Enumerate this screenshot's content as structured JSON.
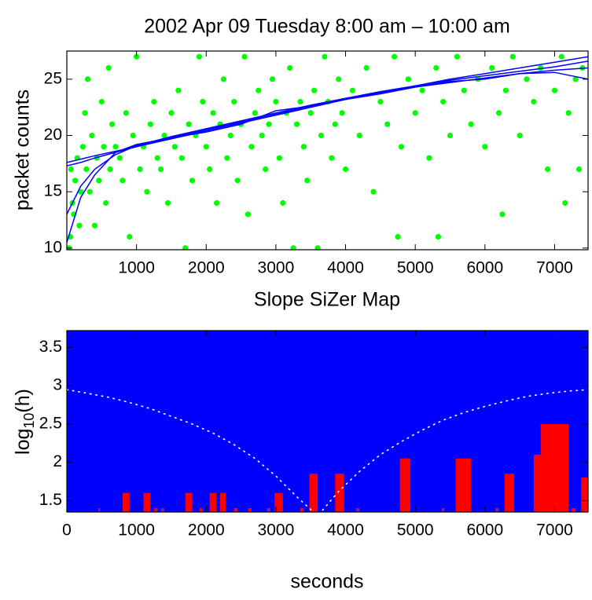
{
  "chart_data": [
    {
      "type": "scatter",
      "title": "2002 Apr 09 Tuesday 8:00 am – 10:00 am",
      "ylabel": "packet counts",
      "xlim": [
        0,
        7480
      ],
      "ylim": [
        9.85,
        27.5
      ],
      "xticks": [
        1000,
        2000,
        3000,
        4000,
        5000,
        6000,
        7000
      ],
      "yticks": [
        10,
        15,
        20,
        25
      ],
      "points": {
        "color": "#00ff00",
        "x": [
          30,
          50,
          60,
          80,
          100,
          120,
          150,
          180,
          200,
          230,
          260,
          280,
          300,
          330,
          360,
          400,
          430,
          460,
          500,
          530,
          560,
          600,
          620,
          650,
          700,
          760,
          800,
          850,
          900,
          950,
          1000,
          1050,
          1100,
          1150,
          1200,
          1250,
          1300,
          1350,
          1400,
          1450,
          1500,
          1550,
          1600,
          1650,
          1700,
          1750,
          1800,
          1850,
          1900,
          1950,
          2000,
          2050,
          2100,
          2150,
          2200,
          2250,
          2300,
          2350,
          2400,
          2450,
          2500,
          2550,
          2600,
          2650,
          2700,
          2750,
          2800,
          2850,
          2900,
          2950,
          3000,
          3050,
          3100,
          3150,
          3200,
          3250,
          3300,
          3350,
          3400,
          3450,
          3500,
          3550,
          3600,
          3650,
          3700,
          3750,
          3800,
          3850,
          3900,
          3950,
          4000,
          4100,
          4200,
          4300,
          4400,
          4500,
          4600,
          4700,
          4750,
          4800,
          4900,
          5000,
          5100,
          5200,
          5300,
          5330,
          5400,
          5500,
          5600,
          5700,
          5800,
          5900,
          6000,
          6100,
          6200,
          6250,
          6300,
          6400,
          6500,
          6600,
          6700,
          6800,
          6900,
          7000,
          7100,
          7150,
          7200,
          7300,
          7350,
          7400
        ],
        "y": [
          10,
          11,
          17,
          14,
          13,
          16,
          18,
          12,
          15,
          19,
          22,
          17,
          25,
          15,
          20,
          12,
          18,
          16,
          23,
          19,
          14,
          26,
          17,
          21,
          19,
          18,
          16,
          22,
          11,
          20,
          27,
          17,
          19,
          15,
          21,
          23,
          18,
          17,
          20,
          14,
          22,
          19,
          24,
          18,
          10,
          21,
          16,
          20,
          27,
          23,
          19,
          17,
          22,
          14,
          21,
          25,
          18,
          20,
          23,
          16,
          21,
          27,
          13,
          19,
          22,
          24,
          20,
          17,
          21,
          25,
          23,
          18,
          14,
          22,
          26,
          10,
          21,
          23,
          19,
          16,
          22,
          24,
          10,
          20,
          27,
          23,
          18,
          21,
          25,
          22,
          17,
          24,
          20,
          26,
          15,
          23,
          21,
          27,
          11,
          19,
          25,
          22,
          24,
          18,
          26,
          11,
          23,
          20,
          27,
          24,
          21,
          25,
          19,
          26,
          22,
          13,
          24,
          27,
          20,
          25,
          23,
          26,
          17,
          24,
          27,
          14,
          22,
          25,
          17,
          26
        ]
      },
      "smooth": {
        "color": "#0000ff",
        "x": [
          0,
          200,
          400,
          700,
          1000,
          1500,
          2000,
          2500,
          3000,
          3500,
          4000,
          4500,
          5000,
          5500,
          6000,
          6500,
          7000,
          7480
        ],
        "curves": [
          [
            10.5,
            14.5,
            16.5,
            18.5,
            19.2,
            19.8,
            20.3,
            21.0,
            22.2,
            22.6,
            23.2,
            23.7,
            24.3,
            24.8,
            25.0,
            25.5,
            25.6,
            25.0
          ],
          [
            13,
            15.5,
            17,
            18.3,
            19.1,
            19.9,
            20.6,
            21.3,
            22.0,
            22.7,
            23.3,
            23.8,
            24.3,
            24.7,
            25.1,
            25.5,
            25.8,
            26.0
          ],
          [
            17.3,
            17.6,
            18,
            18.5,
            19,
            19.8,
            20.5,
            21.2,
            21.9,
            22.6,
            23.3,
            23.9,
            24.4,
            24.9,
            25.3,
            25.7,
            26.1,
            26.6
          ],
          [
            17.6,
            17.9,
            18.2,
            18.6,
            19,
            19.7,
            20.4,
            21.1,
            21.8,
            22.5,
            23.2,
            23.8,
            24.4,
            25.0,
            25.5,
            26.0,
            26.5,
            27.0
          ]
        ]
      }
    },
    {
      "type": "heatmap",
      "title": "Slope SiZer Map",
      "xlabel": "seconds",
      "ylabel": [
        "log",
        "10",
        "(h)"
      ],
      "xlim": [
        0,
        7480
      ],
      "ylim": [
        1.35,
        3.72
      ],
      "xticks": [
        0,
        1000,
        2000,
        3000,
        4000,
        5000,
        6000,
        7000
      ],
      "yticks": [
        1.5,
        2,
        2.5,
        3,
        3.5
      ],
      "background": "#0000ff",
      "regions": [
        {
          "color": "#ff0000",
          "x0": [
            800,
            1100,
            1250,
            1700,
            1900,
            2050,
            2200,
            2400,
            2600,
            2980,
            3350,
            3480,
            3850,
            4780,
            5580,
            6280,
            6700,
            6800,
            7240,
            7380
          ],
          "x1": [
            900,
            1200,
            1300,
            1800,
            1950,
            2150,
            2280,
            2450,
            2650,
            3100,
            3400,
            3600,
            3980,
            4930,
            5800,
            6420,
            6800,
            7200,
            7300,
            7480
          ],
          "top": [
            1.6,
            1.6,
            1.4,
            1.6,
            1.4,
            1.6,
            1.6,
            1.4,
            1.4,
            1.6,
            1.4,
            1.85,
            1.85,
            2.05,
            2.05,
            1.85,
            2.1,
            2.5,
            1.4,
            1.8
          ]
        },
        {
          "color": "#8020a0",
          "x0": [
            450,
            1350,
            2870,
            4150,
            5380,
            6150
          ],
          "x1": [
            480,
            1400,
            2920,
            4200,
            5420,
            6200
          ],
          "top": [
            1.4,
            1.4,
            1.4,
            1.4,
            1.4,
            1.4
          ]
        }
      ],
      "boundary": {
        "color": "#ffffff",
        "x": [
          0,
          300,
          600,
          900,
          1200,
          1500,
          1800,
          2100,
          2400,
          2700,
          3000,
          3300,
          3600,
          3900,
          4200,
          4500,
          4800,
          5100,
          5400,
          5700,
          6000,
          6300,
          6600,
          6900,
          7200,
          7480
        ],
        "y": [
          2.95,
          2.9,
          2.85,
          2.78,
          2.7,
          2.6,
          2.5,
          2.38,
          2.23,
          2.05,
          1.82,
          1.55,
          1.3,
          1.62,
          1.88,
          2.1,
          2.27,
          2.42,
          2.55,
          2.65,
          2.73,
          2.8,
          2.86,
          2.9,
          2.93,
          2.95
        ]
      }
    }
  ]
}
